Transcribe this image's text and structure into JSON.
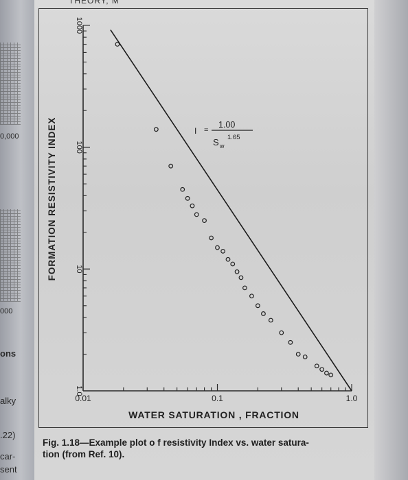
{
  "header_fragment": "THEORY, M",
  "left_margin": {
    "labels": [
      "0,000",
      "000",
      "ons",
      "alky",
      ".22)",
      "car-",
      "sent"
    ]
  },
  "caption": {
    "line1": "Fig. 1.18—Example plot o f resistivity Index vs. water satura-",
    "line2": "tion (from Ref. 10)."
  },
  "chart_data": {
    "type": "scatter",
    "title": "",
    "xlabel": "WATER SATURATION , FRACTION",
    "ylabel": "FORMATION RESISTIVITY INDEX",
    "x_scale": "log",
    "y_scale": "log",
    "xlim": [
      0.01,
      1.0
    ],
    "ylim": [
      1.0,
      1000
    ],
    "x_ticks": [
      "0.01",
      "0.1",
      "1.0"
    ],
    "y_ticks": [
      "1.0",
      "10",
      "100",
      "1000"
    ],
    "grid": false,
    "equation": {
      "lhs": "I",
      "equals": "=",
      "numerator": "1.00",
      "denominator": "S",
      "subscript": "w",
      "exponent": "1.65"
    },
    "fit_line": {
      "a": 1.0,
      "n": 1.65,
      "x_range": [
        0.016,
        1.0
      ]
    },
    "points": [
      {
        "x": 0.018,
        "y": 700
      },
      {
        "x": 0.035,
        "y": 140
      },
      {
        "x": 0.045,
        "y": 70
      },
      {
        "x": 0.055,
        "y": 45
      },
      {
        "x": 0.06,
        "y": 38
      },
      {
        "x": 0.065,
        "y": 33
      },
      {
        "x": 0.07,
        "y": 28
      },
      {
        "x": 0.08,
        "y": 25
      },
      {
        "x": 0.09,
        "y": 18
      },
      {
        "x": 0.1,
        "y": 15
      },
      {
        "x": 0.11,
        "y": 14
      },
      {
        "x": 0.12,
        "y": 12
      },
      {
        "x": 0.13,
        "y": 11
      },
      {
        "x": 0.14,
        "y": 9.5
      },
      {
        "x": 0.15,
        "y": 8.5
      },
      {
        "x": 0.16,
        "y": 7
      },
      {
        "x": 0.18,
        "y": 6
      },
      {
        "x": 0.2,
        "y": 5
      },
      {
        "x": 0.22,
        "y": 4.3
      },
      {
        "x": 0.25,
        "y": 3.8
      },
      {
        "x": 0.3,
        "y": 3.0
      },
      {
        "x": 0.35,
        "y": 2.5
      },
      {
        "x": 0.4,
        "y": 2.0
      },
      {
        "x": 0.45,
        "y": 1.9
      },
      {
        "x": 0.55,
        "y": 1.6
      },
      {
        "x": 0.6,
        "y": 1.5
      },
      {
        "x": 0.65,
        "y": 1.4
      },
      {
        "x": 0.7,
        "y": 1.35
      }
    ]
  }
}
